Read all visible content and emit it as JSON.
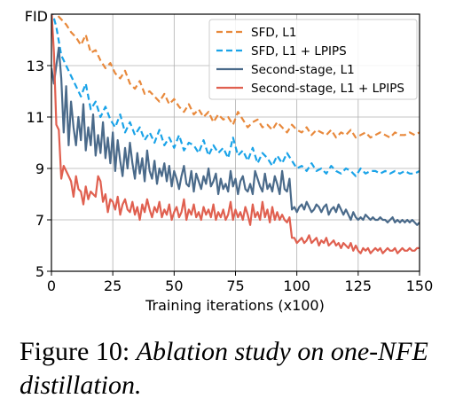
{
  "chart_data": {
    "type": "line",
    "ylabel": "FID",
    "xlabel": "Training iterations (x100)",
    "xlim": [
      0,
      150
    ],
    "ylim": [
      5,
      15
    ],
    "xticks": [
      0,
      25,
      50,
      75,
      100,
      125,
      150
    ],
    "yticks": [
      5,
      7,
      9,
      11,
      13
    ],
    "grid": true,
    "legend_position": "top-right",
    "series": [
      {
        "name": "SFD, L1",
        "color": "#e8893c",
        "style": "dashed",
        "x": [
          0,
          2,
          4,
          6,
          8,
          10,
          12,
          14,
          16,
          18,
          20,
          22,
          24,
          26,
          28,
          30,
          32,
          34,
          36,
          38,
          40,
          42,
          44,
          46,
          48,
          50,
          52,
          54,
          56,
          58,
          60,
          62,
          64,
          66,
          68,
          70,
          72,
          74,
          76,
          78,
          80,
          82,
          84,
          86,
          88,
          90,
          92,
          94,
          96,
          98,
          100,
          102,
          104,
          106,
          108,
          110,
          112,
          114,
          116,
          118,
          120,
          122,
          124,
          126,
          128,
          130,
          132,
          134,
          136,
          138,
          140,
          142,
          144,
          146,
          148,
          150
        ],
        "y": [
          15.2,
          15.0,
          14.8,
          14.6,
          14.3,
          14.1,
          13.8,
          14.2,
          13.5,
          13.6,
          13.2,
          12.9,
          13.1,
          12.7,
          12.5,
          12.8,
          12.3,
          12.1,
          12.4,
          11.9,
          12.0,
          11.8,
          11.6,
          11.9,
          11.5,
          11.7,
          11.4,
          11.2,
          11.5,
          11.1,
          11.3,
          11.0,
          11.2,
          10.8,
          11.1,
          10.9,
          11.0,
          10.7,
          11.2,
          10.9,
          10.6,
          10.8,
          10.9,
          10.6,
          10.7,
          10.5,
          10.8,
          10.6,
          10.4,
          10.7,
          10.5,
          10.4,
          10.6,
          10.3,
          10.5,
          10.4,
          10.3,
          10.5,
          10.2,
          10.4,
          10.3,
          10.5,
          10.2,
          10.3,
          10.4,
          10.2,
          10.3,
          10.4,
          10.3,
          10.2,
          10.4,
          10.3,
          10.3,
          10.4,
          10.3,
          10.4
        ]
      },
      {
        "name": "SFD, L1 + LPIPS",
        "color": "#1aa3e8",
        "style": "dashed",
        "x": [
          0,
          2,
          4,
          6,
          8,
          10,
          12,
          14,
          16,
          18,
          20,
          22,
          24,
          26,
          28,
          30,
          32,
          34,
          36,
          38,
          40,
          42,
          44,
          46,
          48,
          50,
          52,
          54,
          56,
          58,
          60,
          62,
          64,
          66,
          68,
          70,
          72,
          74,
          76,
          78,
          80,
          82,
          84,
          86,
          88,
          90,
          92,
          94,
          96,
          98,
          100,
          102,
          104,
          106,
          108,
          110,
          112,
          114,
          116,
          118,
          120,
          122,
          124,
          126,
          128,
          130,
          132,
          134,
          136,
          138,
          140,
          142,
          144,
          146,
          148,
          150
        ],
        "y": [
          15.2,
          14.5,
          13.4,
          13.0,
          12.6,
          12.2,
          11.8,
          12.3,
          11.3,
          11.6,
          11.0,
          11.4,
          10.9,
          10.6,
          11.1,
          10.4,
          10.8,
          10.3,
          10.6,
          10.1,
          10.4,
          10.0,
          10.5,
          9.9,
          10.2,
          9.8,
          10.3,
          9.7,
          10.0,
          9.9,
          9.6,
          10.1,
          9.5,
          9.9,
          9.6,
          9.8,
          9.4,
          10.2,
          9.5,
          9.7,
          9.3,
          9.8,
          9.2,
          9.6,
          9.4,
          9.1,
          9.5,
          9.2,
          9.6,
          9.3,
          9.0,
          9.1,
          8.9,
          9.2,
          8.9,
          9.0,
          8.8,
          9.1,
          8.9,
          8.8,
          9.0,
          8.9,
          8.7,
          9.0,
          8.8,
          8.9,
          8.9,
          8.8,
          8.9,
          8.8,
          8.9,
          8.8,
          8.9,
          8.8,
          8.8,
          8.9
        ]
      },
      {
        "name": "Second-stage, L1",
        "color": "#4a6a8a",
        "style": "solid",
        "x": [
          0,
          1,
          2,
          3,
          4,
          5,
          6,
          7,
          8,
          9,
          10,
          11,
          12,
          13,
          14,
          15,
          16,
          17,
          18,
          19,
          20,
          21,
          22,
          23,
          24,
          25,
          26,
          27,
          28,
          29,
          30,
          31,
          32,
          33,
          34,
          35,
          36,
          37,
          38,
          39,
          40,
          41,
          42,
          43,
          44,
          45,
          46,
          47,
          48,
          49,
          50,
          51,
          52,
          53,
          54,
          55,
          56,
          57,
          58,
          59,
          60,
          61,
          62,
          63,
          64,
          65,
          66,
          67,
          68,
          69,
          70,
          71,
          72,
          73,
          74,
          75,
          76,
          77,
          78,
          79,
          80,
          81,
          82,
          83,
          84,
          85,
          86,
          87,
          88,
          89,
          90,
          91,
          92,
          93,
          94,
          95,
          96,
          97,
          98,
          99,
          100,
          101,
          102,
          103,
          104,
          105,
          106,
          107,
          108,
          109,
          110,
          111,
          112,
          113,
          114,
          115,
          116,
          117,
          118,
          119,
          120,
          121,
          122,
          123,
          124,
          125,
          126,
          127,
          128,
          129,
          130,
          131,
          132,
          133,
          134,
          135,
          136,
          137,
          138,
          139,
          140,
          141,
          142,
          143,
          144,
          145,
          146,
          147,
          148,
          149,
          150
        ],
        "y": [
          12.9,
          12.3,
          13.0,
          13.7,
          12.5,
          10.4,
          12.2,
          9.9,
          11.6,
          10.6,
          9.9,
          11.0,
          10.1,
          11.5,
          9.7,
          10.6,
          9.9,
          11.1,
          9.5,
          10.3,
          9.6,
          10.8,
          9.4,
          10.2,
          9.2,
          10.4,
          8.9,
          10.1,
          9.3,
          8.7,
          9.8,
          9.0,
          10.0,
          9.2,
          8.6,
          9.6,
          8.8,
          9.4,
          8.5,
          9.7,
          8.9,
          8.6,
          9.3,
          8.4,
          9.0,
          8.7,
          9.2,
          8.5,
          9.1,
          8.3,
          8.9,
          8.6,
          8.2,
          8.7,
          9.1,
          8.4,
          8.3,
          8.9,
          8.1,
          8.8,
          8.5,
          8.2,
          8.7,
          8.4,
          9.0,
          8.3,
          8.5,
          8.8,
          8.0,
          8.6,
          8.2,
          8.4,
          8.1,
          8.9,
          8.3,
          8.6,
          8.0,
          8.5,
          8.7,
          8.2,
          8.1,
          8.4,
          8.0,
          8.9,
          8.6,
          8.3,
          8.1,
          8.8,
          8.2,
          8.4,
          8.1,
          8.7,
          8.4,
          8.0,
          8.9,
          8.2,
          8.1,
          8.6,
          7.4,
          7.5,
          7.3,
          7.5,
          7.6,
          7.4,
          7.7,
          7.5,
          7.3,
          7.4,
          7.6,
          7.5,
          7.3,
          7.5,
          7.6,
          7.2,
          7.4,
          7.5,
          7.3,
          7.6,
          7.4,
          7.2,
          7.4,
          7.2,
          7.0,
          7.3,
          7.1,
          7.0,
          7.1,
          7.0,
          7.2,
          7.1,
          7.0,
          7.1,
          7.0,
          7.0,
          7.1,
          7.0,
          7.0,
          6.9,
          7.0,
          7.1,
          6.9,
          7.0,
          6.9,
          7.0,
          6.9,
          7.0,
          6.9,
          7.0,
          6.9,
          6.8,
          6.9
        ]
      },
      {
        "name": "Second-stage, L1 + LPIPS",
        "color": "#e06050",
        "style": "solid",
        "x": [
          0,
          1,
          2,
          3,
          4,
          5,
          6,
          7,
          8,
          9,
          10,
          11,
          12,
          13,
          14,
          15,
          16,
          17,
          18,
          19,
          20,
          21,
          22,
          23,
          24,
          25,
          26,
          27,
          28,
          29,
          30,
          31,
          32,
          33,
          34,
          35,
          36,
          37,
          38,
          39,
          40,
          41,
          42,
          43,
          44,
          45,
          46,
          47,
          48,
          49,
          50,
          51,
          52,
          53,
          54,
          55,
          56,
          57,
          58,
          59,
          60,
          61,
          62,
          63,
          64,
          65,
          66,
          67,
          68,
          69,
          70,
          71,
          72,
          73,
          74,
          75,
          76,
          77,
          78,
          79,
          80,
          81,
          82,
          83,
          84,
          85,
          86,
          87,
          88,
          89,
          90,
          91,
          92,
          93,
          94,
          95,
          96,
          97,
          98,
          99,
          100,
          101,
          102,
          103,
          104,
          105,
          106,
          107,
          108,
          109,
          110,
          111,
          112,
          113,
          114,
          115,
          116,
          117,
          118,
          119,
          120,
          121,
          122,
          123,
          124,
          125,
          126,
          127,
          128,
          129,
          130,
          131,
          132,
          133,
          134,
          135,
          136,
          137,
          138,
          139,
          140,
          141,
          142,
          143,
          144,
          145,
          146,
          147,
          148,
          149,
          150
        ],
        "y": [
          15.2,
          13.5,
          10.7,
          10.5,
          8.6,
          9.1,
          8.9,
          8.7,
          8.5,
          7.9,
          8.7,
          8.2,
          8.1,
          7.6,
          8.3,
          7.8,
          8.1,
          8.0,
          7.9,
          8.7,
          8.5,
          7.7,
          8.0,
          7.3,
          7.8,
          7.7,
          7.4,
          7.9,
          7.2,
          7.6,
          7.8,
          7.4,
          7.3,
          7.7,
          7.2,
          7.5,
          7.0,
          7.6,
          7.3,
          7.8,
          7.4,
          7.1,
          7.5,
          7.3,
          7.7,
          7.1,
          7.4,
          7.2,
          7.6,
          7.0,
          7.3,
          7.5,
          7.1,
          7.3,
          7.8,
          7.0,
          7.4,
          7.2,
          7.6,
          7.1,
          7.3,
          7.0,
          7.5,
          7.2,
          7.4,
          7.1,
          7.6,
          7.0,
          7.3,
          7.1,
          7.4,
          7.0,
          7.2,
          7.7,
          7.0,
          7.4,
          7.1,
          7.3,
          7.0,
          7.5,
          7.2,
          6.8,
          7.6,
          7.1,
          7.3,
          7.0,
          7.7,
          7.1,
          7.4,
          6.9,
          7.5,
          7.0,
          7.3,
          7.0,
          7.2,
          7.0,
          6.9,
          7.1,
          6.3,
          6.3,
          6.1,
          6.2,
          6.3,
          6.1,
          6.2,
          6.4,
          6.1,
          6.2,
          6.3,
          6.0,
          6.2,
          6.1,
          6.3,
          6.0,
          6.1,
          6.2,
          6.0,
          6.1,
          5.9,
          6.1,
          6.0,
          5.9,
          6.1,
          5.8,
          6.0,
          5.8,
          5.7,
          5.9,
          5.8,
          5.9,
          5.7,
          5.8,
          5.9,
          5.8,
          5.9,
          5.7,
          5.8,
          5.9,
          5.8,
          5.8,
          5.9,
          5.7,
          5.8,
          5.9,
          5.8,
          5.8,
          5.9,
          5.8,
          5.8,
          5.9,
          5.9
        ]
      }
    ]
  },
  "caption": {
    "label": "Figure 10:",
    "text": "Ablation study on one-NFE distillation."
  }
}
